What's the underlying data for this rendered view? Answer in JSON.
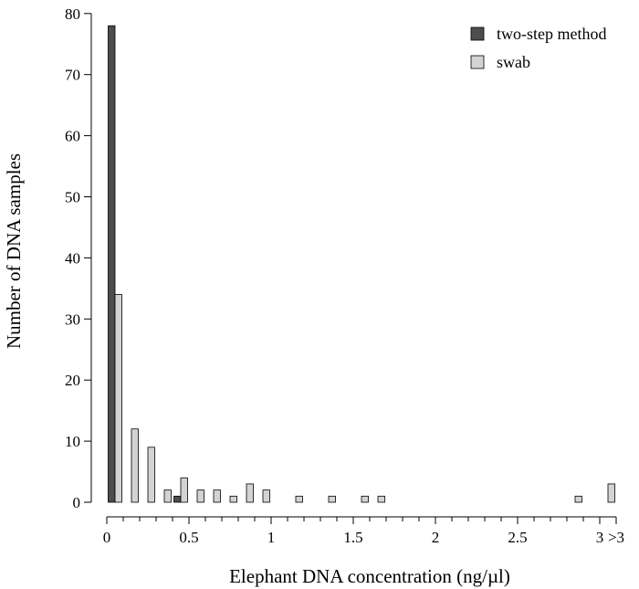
{
  "chart_data": {
    "type": "bar",
    "xlabel": "Elephant DNA concentration (ng/µl)",
    "ylabel": "Number of DNA samples",
    "ylim": [
      0,
      80
    ],
    "yticks": [
      0,
      10,
      20,
      30,
      40,
      50,
      60,
      70,
      80
    ],
    "xlim": [
      0,
      3.1
    ],
    "xticks": [
      {
        "value": 0,
        "label": "0"
      },
      {
        "value": 0.5,
        "label": "0.5"
      },
      {
        "value": 1,
        "label": "1"
      },
      {
        "value": 1.5,
        "label": "1.5"
      },
      {
        "value": 2,
        "label": "2"
      },
      {
        "value": 2.5,
        "label": "2.5"
      },
      {
        "value": 3,
        "label": "3"
      },
      {
        "value": 3.1,
        "label": ">3"
      }
    ],
    "bin_width": 0.1,
    "bins_start": [
      0,
      0.1,
      0.2,
      0.3,
      0.4,
      0.5,
      0.6,
      0.7,
      0.8,
      0.9,
      1.0,
      1.1,
      1.2,
      1.3,
      1.4,
      1.5,
      1.6,
      1.7,
      1.8,
      1.9,
      2.0,
      2.1,
      2.2,
      2.3,
      2.4,
      2.5,
      2.6,
      2.7,
      2.8,
      2.9,
      3.0
    ],
    "series": [
      {
        "name": "two-step method",
        "color": "#4d4d4d",
        "values": [
          78,
          0,
          0,
          0,
          1,
          0,
          0,
          0,
          0,
          0,
          0,
          0,
          0,
          0,
          0,
          0,
          0,
          0,
          0,
          0,
          0,
          0,
          0,
          0,
          0,
          0,
          0,
          0,
          0,
          0,
          0
        ]
      },
      {
        "name": "swab",
        "color": "#d3d3d3",
        "values": [
          34,
          12,
          9,
          2,
          4,
          2,
          2,
          1,
          3,
          2,
          0,
          1,
          0,
          1,
          0,
          1,
          1,
          0,
          0,
          0,
          0,
          0,
          0,
          0,
          0,
          0,
          0,
          0,
          1,
          0,
          3
        ]
      }
    ],
    "legend_position": "top-right",
    "grid": false
  }
}
